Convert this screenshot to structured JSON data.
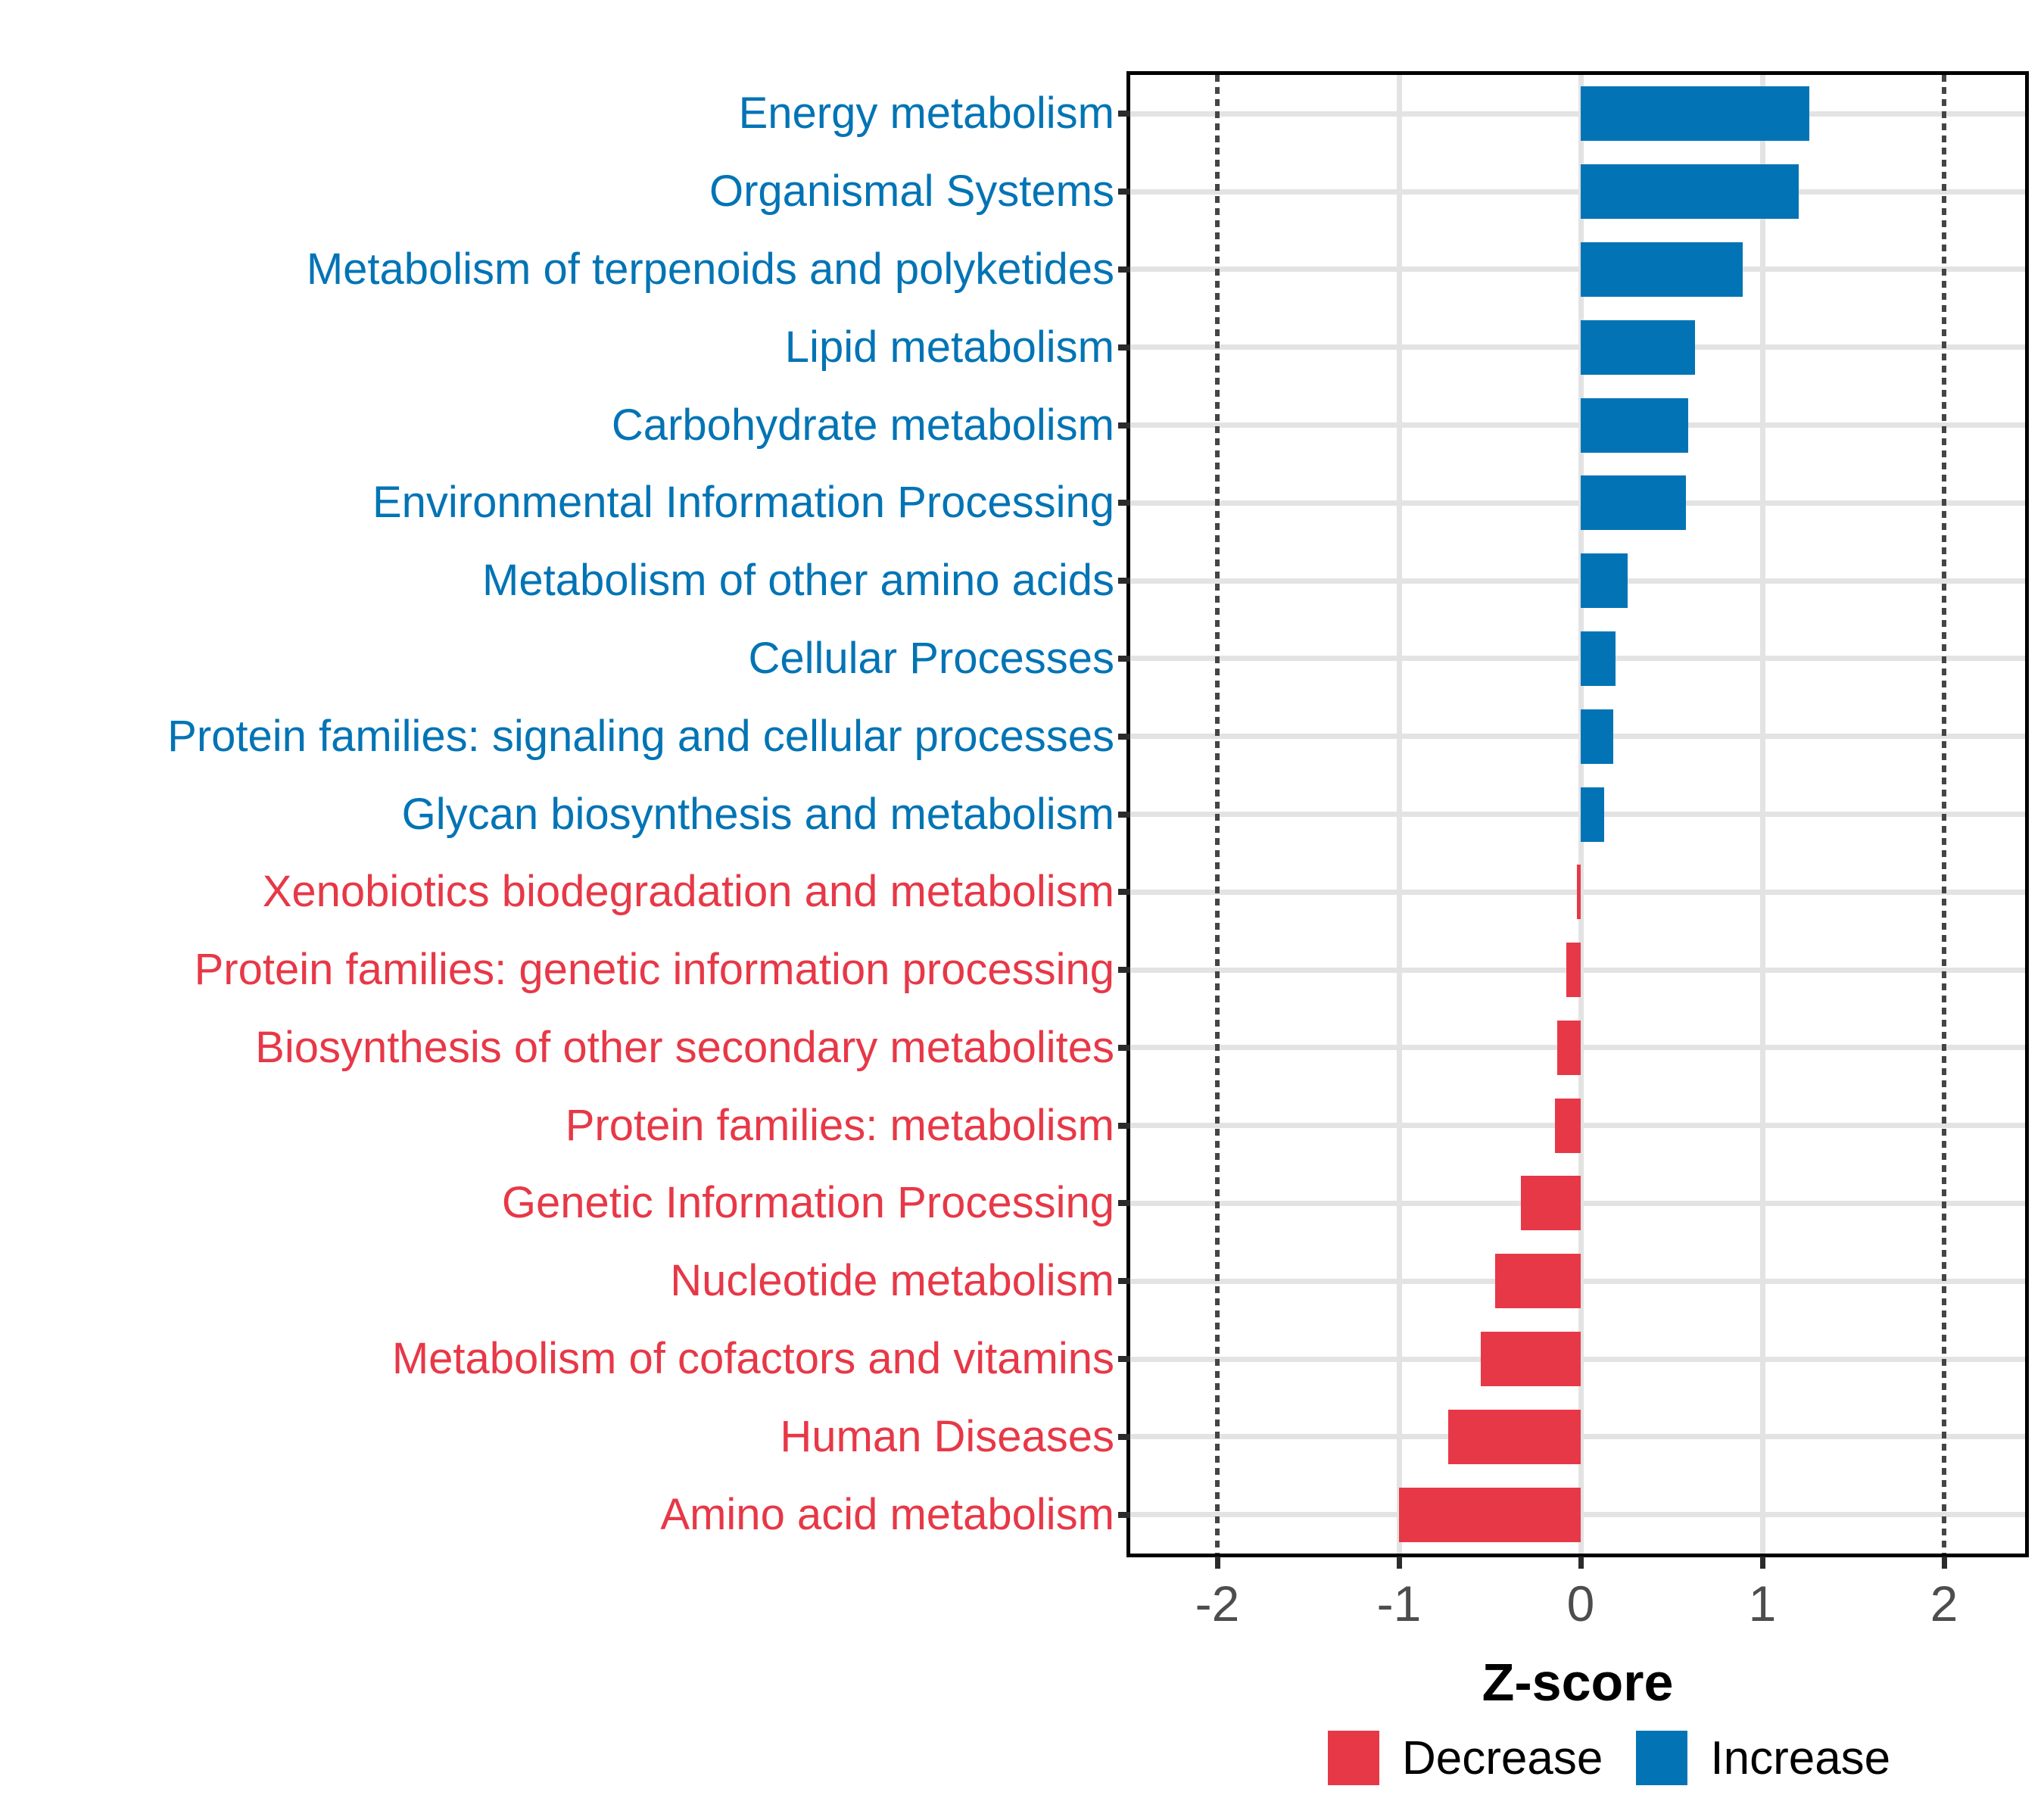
{
  "chart_data": {
    "type": "bar",
    "orientation": "horizontal",
    "xlabel": "Z-score",
    "x_ticks": [
      -2,
      -1,
      0,
      1,
      2
    ],
    "xlim": [
      -2.48,
      2.45
    ],
    "grid": {
      "h_gridline_per_category": true,
      "v_solid_at": [
        -1,
        0,
        1
      ],
      "v_dotted_at": [
        -2,
        2
      ]
    },
    "colors": {
      "increase": "#0274B5",
      "decrease": "#E73847"
    },
    "legend": {
      "position": "bottom",
      "entries": [
        {
          "label": "Decrease",
          "color": "#E73847"
        },
        {
          "label": "Increase",
          "color": "#0274B5"
        }
      ]
    },
    "categories": [
      {
        "label": "Energy metabolism",
        "value": 1.26,
        "direction": "increase"
      },
      {
        "label": "Organismal Systems",
        "value": 1.2,
        "direction": "increase"
      },
      {
        "label": "Metabolism of terpenoids and polyketides",
        "value": 0.89,
        "direction": "increase"
      },
      {
        "label": "Lipid metabolism",
        "value": 0.63,
        "direction": "increase"
      },
      {
        "label": "Carbohydrate metabolism",
        "value": 0.59,
        "direction": "increase"
      },
      {
        "label": "Environmental Information Processing",
        "value": 0.58,
        "direction": "increase"
      },
      {
        "label": "Metabolism of other amino acids",
        "value": 0.26,
        "direction": "increase"
      },
      {
        "label": "Cellular Processes",
        "value": 0.19,
        "direction": "increase"
      },
      {
        "label": "Protein families: signaling and cellular processes",
        "value": 0.18,
        "direction": "increase"
      },
      {
        "label": "Glycan biosynthesis and metabolism",
        "value": 0.13,
        "direction": "increase"
      },
      {
        "label": "Xenobiotics biodegradation and metabolism",
        "value": -0.02,
        "direction": "decrease"
      },
      {
        "label": "Protein families: genetic information processing",
        "value": -0.08,
        "direction": "decrease"
      },
      {
        "label": "Biosynthesis of other secondary metabolites",
        "value": -0.13,
        "direction": "decrease"
      },
      {
        "label": "Protein families: metabolism",
        "value": -0.14,
        "direction": "decrease"
      },
      {
        "label": "Genetic Information Processing",
        "value": -0.33,
        "direction": "decrease"
      },
      {
        "label": "Nucleotide metabolism",
        "value": -0.47,
        "direction": "decrease"
      },
      {
        "label": "Metabolism of cofactors and vitamins",
        "value": -0.55,
        "direction": "decrease"
      },
      {
        "label": "Human Diseases",
        "value": -0.73,
        "direction": "decrease"
      },
      {
        "label": "Amino acid metabolism",
        "value": -1.0,
        "direction": "decrease"
      }
    ]
  }
}
